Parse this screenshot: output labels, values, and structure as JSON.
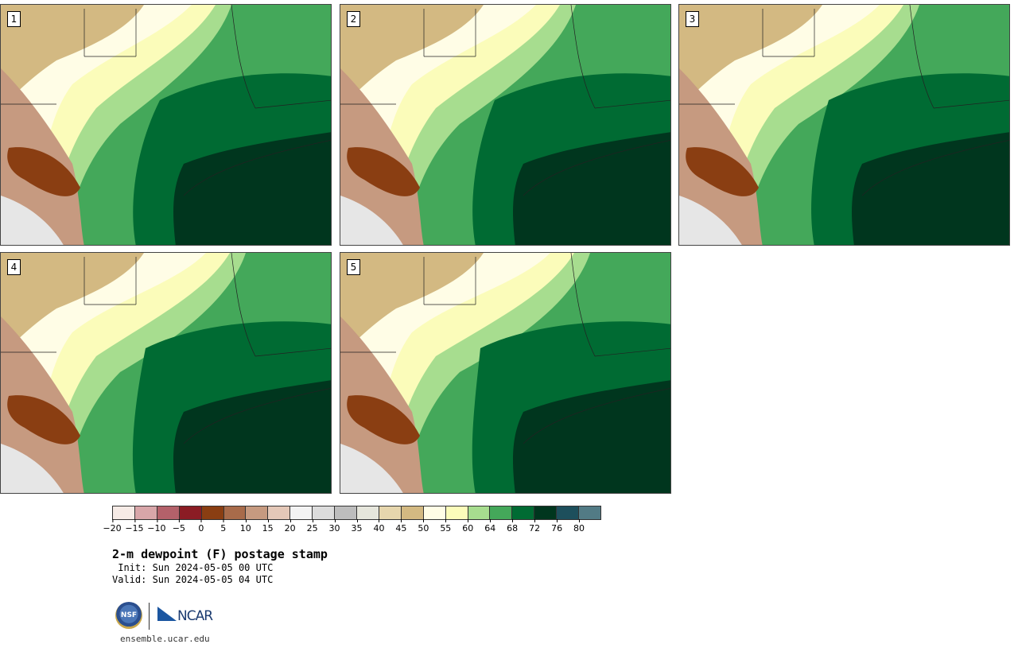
{
  "panels": [
    {
      "label": "1"
    },
    {
      "label": "2"
    },
    {
      "label": "3"
    },
    {
      "label": "4"
    },
    {
      "label": "5"
    }
  ],
  "colorbar": {
    "colors": [
      "#f6ebe6",
      "#d8a6a9",
      "#b4616a",
      "#8b1c24",
      "#8a3e12",
      "#a86b4a",
      "#c69a80",
      "#e4c8b8",
      "#f3f3f3",
      "#dcdcdc",
      "#bdbdbd",
      "#e6e6dc",
      "#e6d6ad",
      "#d3b982",
      "#fffde6",
      "#fbfcba",
      "#a7dd8f",
      "#44a85a",
      "#006b33",
      "#00361e",
      "#1d4f5c",
      "#527b85"
    ],
    "ticks": [
      "−20",
      "−15",
      "−10",
      "−5",
      "0",
      "5",
      "10",
      "15",
      "20",
      "25",
      "30",
      "35",
      "40",
      "45",
      "50",
      "55",
      "60",
      "64",
      "68",
      "72",
      "76",
      "80"
    ]
  },
  "title": "2-m dewpoint (F) postage stamp",
  "init": " Init: Sun 2024-05-05 00 UTC",
  "valid": "Valid: Sun 2024-05-05 04 UTC",
  "logo": {
    "nsf": "NSF",
    "ncar": "NCAR"
  },
  "url": "ensemble.ucar.edu",
  "colors": {
    "brown_dark": "#8a3e12",
    "brown_mid": "#c69a80",
    "tan": "#d3b982",
    "cream": "#fffde6",
    "light_yellow": "#fbfcba",
    "light_green": "#a7dd8f",
    "green": "#44a85a",
    "dark_green": "#006b33",
    "darkest_green": "#00361e"
  }
}
